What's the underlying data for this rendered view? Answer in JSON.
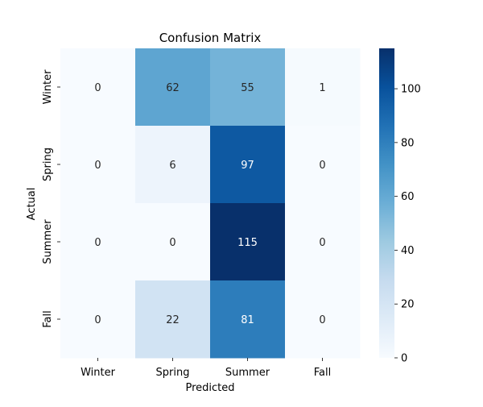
{
  "chart_data": {
    "type": "heatmap",
    "title": "Confusion Matrix",
    "xlabel": "Predicted",
    "ylabel": "Actual",
    "x_categories": [
      "Winter",
      "Spring",
      "Summer",
      "Fall"
    ],
    "y_categories": [
      "Winter",
      "Spring",
      "Summer",
      "Fall"
    ],
    "values": [
      [
        0,
        62,
        55,
        1
      ],
      [
        0,
        6,
        97,
        0
      ],
      [
        0,
        0,
        115,
        0
      ],
      [
        0,
        22,
        81,
        0
      ]
    ],
    "colorbar": {
      "colormap": "Blues",
      "range": [
        0,
        115
      ],
      "ticks": [
        0,
        20,
        40,
        60,
        80,
        100
      ],
      "low_color": "#f7fbff",
      "high_color": "#08306b"
    },
    "grid": false,
    "legend": "colorbar-right"
  }
}
